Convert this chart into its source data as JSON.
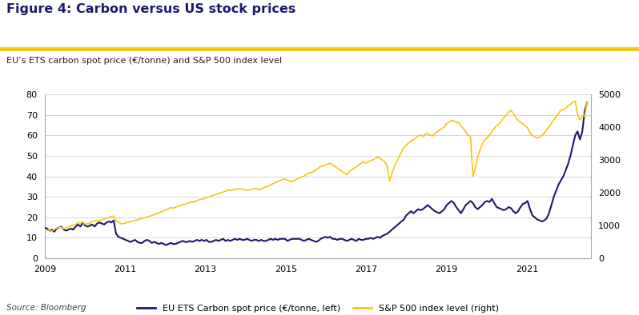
{
  "title": "Figure 4: Carbon versus US stock prices",
  "subtitle": "EU’s ETS carbon spot price (€/tonne) and S&P 500 index level",
  "source": "Source: Bloomberg",
  "title_color": "#1a1a6e",
  "gold_bar_color": "#f5c518",
  "left_ylim": [
    0,
    80
  ],
  "right_ylim": [
    0,
    5000
  ],
  "left_yticks": [
    0,
    10,
    20,
    30,
    40,
    50,
    60,
    70,
    80
  ],
  "right_yticks": [
    0,
    1000,
    2000,
    3000,
    4000,
    5000
  ],
  "xtick_years": [
    "2009",
    "2011",
    "2013",
    "2015",
    "2017",
    "2019",
    "2021"
  ],
  "xtick_positions": [
    2009,
    2011,
    2013,
    2015,
    2017,
    2019,
    2021
  ],
  "legend_carbon": "EU ETS Carbon spot price (€/tonne, left)",
  "legend_sp500": "S&P 500 index level (right)",
  "carbon_color": "#1a1a6e",
  "sp500_color": "#f5c518",
  "start_year": 2009.0,
  "end_year": 2022.5,
  "carbon_data": [
    15.0,
    14.5,
    13.5,
    14.0,
    13.0,
    14.5,
    15.0,
    15.5,
    14.0,
    13.5,
    14.0,
    14.5,
    14.0,
    15.5,
    16.5,
    15.5,
    17.5,
    16.0,
    15.5,
    16.0,
    16.5,
    15.5,
    17.0,
    17.5,
    17.0,
    16.5,
    17.5,
    18.0,
    17.5,
    18.5,
    12.0,
    10.5,
    10.0,
    9.5,
    9.0,
    8.5,
    8.0,
    8.5,
    9.0,
    8.0,
    7.5,
    7.5,
    8.5,
    9.0,
    8.5,
    7.5,
    8.0,
    7.5,
    7.0,
    7.5,
    7.0,
    6.5,
    7.0,
    7.5,
    7.0,
    7.0,
    7.5,
    8.0,
    8.5,
    8.0,
    8.0,
    8.5,
    8.0,
    8.5,
    9.0,
    8.5,
    9.0,
    8.5,
    9.0,
    8.0,
    8.0,
    8.5,
    9.0,
    8.5,
    9.0,
    9.5,
    8.5,
    9.0,
    8.5,
    9.0,
    9.5,
    9.0,
    9.5,
    9.0,
    9.0,
    9.5,
    9.0,
    8.5,
    9.0,
    9.0,
    8.5,
    9.0,
    8.5,
    8.5,
    9.0,
    9.5,
    9.0,
    9.5,
    9.0,
    9.5,
    9.5,
    9.5,
    8.5,
    9.0,
    9.5,
    9.5,
    9.5,
    9.5,
    9.0,
    8.5,
    9.0,
    9.5,
    9.0,
    8.5,
    8.0,
    8.5,
    9.5,
    10.0,
    10.5,
    10.0,
    10.5,
    9.5,
    9.5,
    9.0,
    9.5,
    9.5,
    9.0,
    8.5,
    9.0,
    9.5,
    9.0,
    8.5,
    9.5,
    9.0,
    9.0,
    9.5,
    9.5,
    10.0,
    9.5,
    10.0,
    10.5,
    10.0,
    11.0,
    11.5,
    12.0,
    13.0,
    14.0,
    15.0,
    16.0,
    17.0,
    18.0,
    19.0,
    21.0,
    22.0,
    23.0,
    22.0,
    23.0,
    24.0,
    23.5,
    24.0,
    25.0,
    26.0,
    25.0,
    24.0,
    23.0,
    22.5,
    22.0,
    23.0,
    24.0,
    26.0,
    27.0,
    28.0,
    27.0,
    25.0,
    23.5,
    22.0,
    24.0,
    26.0,
    27.0,
    28.0,
    27.0,
    25.0,
    24.0,
    25.0,
    26.0,
    27.5,
    28.0,
    27.5,
    29.0,
    27.0,
    25.0,
    24.5,
    24.0,
    23.5,
    24.0,
    25.0,
    24.5,
    23.0,
    22.0,
    23.0,
    25.0,
    26.5,
    27.0,
    28.0,
    24.0,
    21.0,
    20.0,
    19.0,
    18.5,
    18.0,
    18.5,
    19.5,
    22.0,
    26.0,
    30.0,
    33.0,
    36.0,
    38.0,
    40.0,
    43.0,
    46.0,
    50.0,
    55.0,
    60.0,
    62.0,
    58.0,
    62.0,
    72.0,
    76.0
  ],
  "sp500_data": [
    860,
    850,
    870,
    820,
    880,
    920,
    940,
    950,
    900,
    940,
    960,
    990,
    1020,
    1030,
    1090,
    1080,
    1100,
    1040,
    1060,
    1070,
    1130,
    1150,
    1160,
    1150,
    1170,
    1200,
    1220,
    1250,
    1270,
    1290,
    1150,
    1100,
    1060,
    1050,
    1080,
    1100,
    1120,
    1140,
    1160,
    1180,
    1200,
    1220,
    1240,
    1260,
    1280,
    1310,
    1340,
    1360,
    1380,
    1420,
    1450,
    1480,
    1510,
    1550,
    1530,
    1560,
    1590,
    1610,
    1640,
    1650,
    1680,
    1700,
    1720,
    1730,
    1760,
    1790,
    1800,
    1820,
    1850,
    1870,
    1900,
    1930,
    1950,
    1970,
    2000,
    2020,
    2050,
    2080,
    2070,
    2090,
    2100,
    2120,
    2110,
    2120,
    2100,
    2080,
    2090,
    2110,
    2130,
    2120,
    2100,
    2120,
    2150,
    2180,
    2200,
    2250,
    2280,
    2310,
    2350,
    2380,
    2400,
    2430,
    2380,
    2360,
    2350,
    2380,
    2420,
    2450,
    2480,
    2510,
    2560,
    2600,
    2620,
    2650,
    2700,
    2750,
    2800,
    2820,
    2850,
    2880,
    2900,
    2850,
    2800,
    2750,
    2700,
    2650,
    2600,
    2550,
    2650,
    2700,
    2750,
    2800,
    2850,
    2900,
    2950,
    2900,
    2950,
    2980,
    3010,
    3050,
    3100,
    3050,
    3000,
    2950,
    2800,
    2350,
    2600,
    2800,
    2950,
    3100,
    3250,
    3380,
    3450,
    3530,
    3580,
    3620,
    3670,
    3730,
    3760,
    3720,
    3790,
    3810,
    3760,
    3730,
    3810,
    3860,
    3910,
    3960,
    4010,
    4110,
    4160,
    4210,
    4190,
    4160,
    4130,
    4050,
    3960,
    3860,
    3760,
    3710,
    2500,
    2750,
    3100,
    3300,
    3500,
    3620,
    3680,
    3760,
    3870,
    3970,
    4050,
    4100,
    4200,
    4300,
    4380,
    4450,
    4520,
    4420,
    4300,
    4200,
    4150,
    4100,
    4050,
    3980,
    3820,
    3750,
    3700,
    3680,
    3700,
    3750,
    3820,
    3920,
    4020,
    4120,
    4220,
    4320,
    4420,
    4520,
    4540,
    4580,
    4650,
    4700,
    4750,
    4800,
    4400,
    4220,
    4350,
    4350,
    4750
  ]
}
